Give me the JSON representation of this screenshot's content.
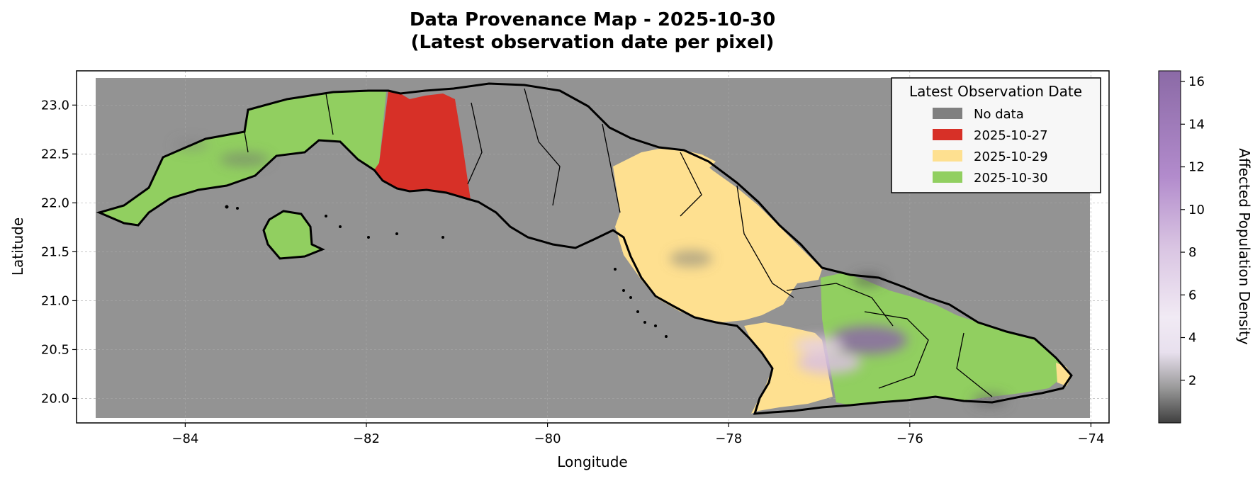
{
  "title_line1": "Data Provenance Map - 2025-10-30",
  "title_line2": "(Latest observation date per pixel)",
  "xlabel": "Longitude",
  "ylabel": "Latitude",
  "x_ticks": [
    "−84",
    "−82",
    "−80",
    "−78",
    "−76",
    "−74"
  ],
  "y_ticks": [
    "20.0",
    "20.5",
    "21.0",
    "21.5",
    "22.0",
    "22.5",
    "23.0"
  ],
  "legend": {
    "title": "Latest Observation Date",
    "placement": "top-right",
    "items": [
      {
        "label": "No data",
        "color": "#808080"
      },
      {
        "label": "2025-10-27",
        "color": "#d73027"
      },
      {
        "label": "2025-10-29",
        "color": "#fee090"
      },
      {
        "label": "2025-10-30",
        "color": "#91cf60"
      }
    ]
  },
  "colorbar": {
    "label": "Affected Population Density",
    "ticks": [
      "2",
      "4",
      "6",
      "8",
      "10",
      "12",
      "14",
      "16"
    ],
    "range": [
      0,
      16.5
    ],
    "colors": {
      "low": "#3f3f3f",
      "mid": "#e8def0",
      "high": "#8b6aa6"
    }
  },
  "chart_data": {
    "type": "heatmap",
    "xlim": [
      -85.2,
      -73.8
    ],
    "ylim": [
      19.75,
      23.35
    ],
    "grid": true,
    "swaths": [
      {
        "date": "2025-10-30",
        "lon_range": [
          -85.0,
          -82.0
        ]
      },
      {
        "date": "2025-10-27",
        "lon_range": [
          -82.0,
          -80.8
        ]
      },
      {
        "date": "2025-10-29",
        "lon_range": [
          -79.3,
          -76.9
        ]
      },
      {
        "date": "2025-10-30",
        "lon_range": [
          -76.9,
          -74.1
        ]
      }
    ],
    "colors": {
      "background": "#939393",
      "outline": "#000000"
    }
  }
}
